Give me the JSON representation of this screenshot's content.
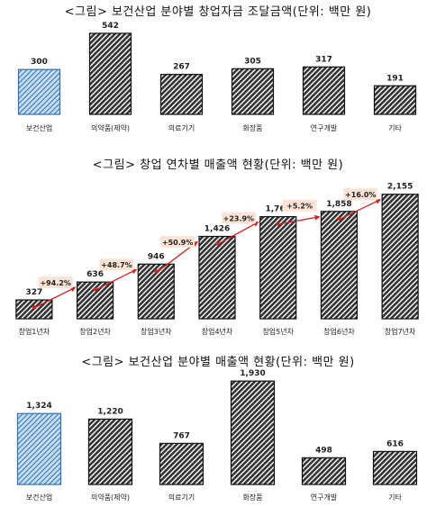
{
  "chart_data": [
    {
      "type": "bar",
      "title": "<그림> 보건산업 분야별 창업자금 조달금액(단위: 백만 원)",
      "categories": [
        "보건산업",
        "의약품(제약)",
        "의료기기",
        "화장품",
        "연구개발",
        "기타"
      ],
      "values": [
        300,
        542,
        267,
        305,
        317,
        191
      ],
      "value_labels": [
        "300",
        "542",
        "267",
        "305",
        "317",
        "191"
      ],
      "ylim": [
        0,
        560
      ],
      "grid": false,
      "legend": "none",
      "colors": {
        "highlight": "#c5dcf3",
        "highlight_stroke": "#2e6fb6",
        "bar": "#333333",
        "bar_stroke": "#111111"
      }
    },
    {
      "type": "bar",
      "title": "<그림> 창업 연차별 매출액 현황(단위: 백만 원)",
      "categories": [
        "창업1년차",
        "창업2년차",
        "창업3년차",
        "창업4년차",
        "창업5년차",
        "창업6년차",
        "창업7년차"
      ],
      "values": [
        327,
        636,
        946,
        1426,
        1767,
        1858,
        2155
      ],
      "value_labels": [
        "327",
        "636",
        "946",
        "1,426",
        "1,767",
        "1,858",
        "2,155"
      ],
      "growth_labels": [
        "+94.2%",
        "+48.7%",
        "+50.9%",
        "+23.9%",
        "+5.2%",
        "+16.0%"
      ],
      "ylim": [
        0,
        2400
      ],
      "grid": false,
      "legend": "none",
      "colors": {
        "bar": "#333333",
        "bar_stroke": "#111111",
        "arrow": "#d42020",
        "badge": "#fbe3d6"
      }
    },
    {
      "type": "bar",
      "title": "<그림> 보건산업 분야별 매출액 현황(단위: 백만 원)",
      "categories": [
        "보건산업",
        "의약품(제약)",
        "의료기기",
        "화장품",
        "연구개발",
        "기타"
      ],
      "values": [
        1324,
        1220,
        767,
        1930,
        498,
        616
      ],
      "value_labels": [
        "1,324",
        "1,220",
        "767",
        "1,930",
        "498",
        "616"
      ],
      "ylim": [
        0,
        2000
      ],
      "grid": false,
      "legend": "none",
      "colors": {
        "highlight": "#c5dcf3",
        "highlight_stroke": "#2e6fb6",
        "bar": "#333333",
        "bar_stroke": "#111111"
      }
    }
  ]
}
